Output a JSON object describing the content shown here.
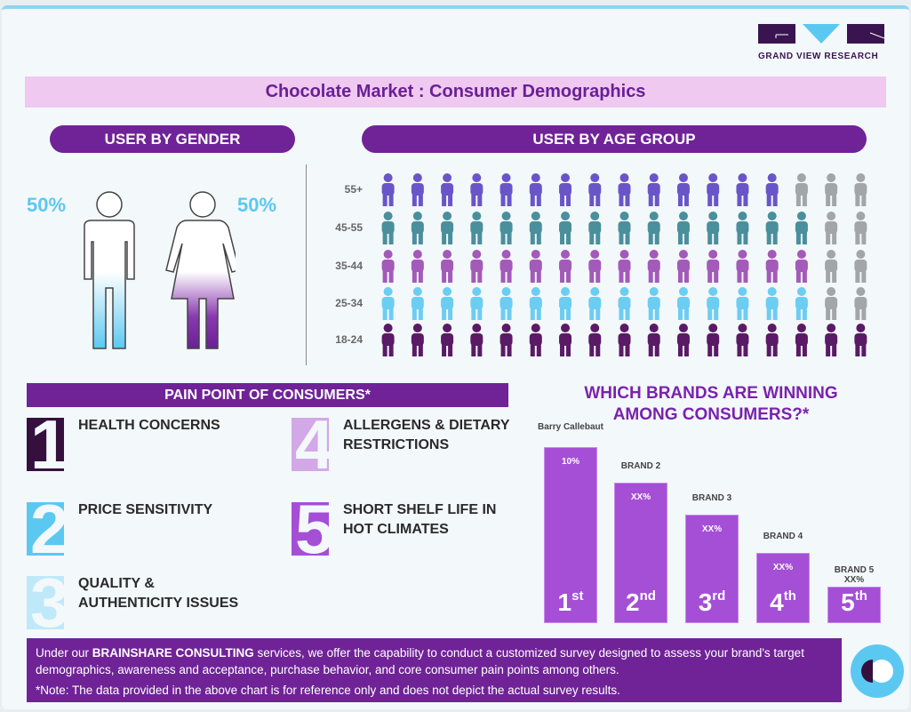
{
  "logo": {
    "text": "GRAND VIEW RESEARCH"
  },
  "title": "Chocolate Market : Consumer Demographics",
  "gender": {
    "heading": "USER BY GENDER",
    "male_pct": "50%",
    "female_pct": "50%",
    "male_share": 50,
    "female_share": 50
  },
  "age": {
    "heading": "USER BY AGE GROUP",
    "groups": [
      {
        "label": "55+",
        "fill_fraction": 0.8,
        "color": "#6a55c8",
        "icon": "elderly-person-with-cane"
      },
      {
        "label": "45-55",
        "fill_fraction": 0.9,
        "color": "#4a8f9c",
        "icon": "family-group"
      },
      {
        "label": "35-44",
        "fill_fraction": 0.9,
        "color": "#a35ab8",
        "icon": "couple-with-child"
      },
      {
        "label": "25-34",
        "fill_fraction": 0.9,
        "color": "#6ccdf2",
        "icon": "couple"
      },
      {
        "label": "18-24",
        "fill_fraction": 1.0,
        "color": "#5a1a66",
        "icon": "running-person"
      }
    ]
  },
  "pain_points": {
    "heading": "PAIN POINT OF CONSUMERS*",
    "items": [
      {
        "num": "1",
        "text": "HEALTH CONCERNS",
        "color": "#35103f"
      },
      {
        "num": "2",
        "text": "PRICE SENSITIVITY",
        "color": "#5bc8f2"
      },
      {
        "num": "3",
        "text": "QUALITY & AUTHENTICITY ISSUES",
        "color": "#bfe9f8"
      },
      {
        "num": "4",
        "text": "ALLERGENS & DIETARY RESTRICTIONS",
        "color": "#d3a8e6"
      },
      {
        "num": "5",
        "text": "SHORT SHELF LIFE IN HOT CLIMATES",
        "color": "#a44fd6"
      }
    ]
  },
  "brands": {
    "title_line1": "WHICH BRANDS ARE WINNING",
    "title_line2": "AMONG CONSUMERS?*",
    "items": [
      {
        "name": "Barry Callebaut",
        "value": "10%",
        "rank": "1",
        "suffix": "st"
      },
      {
        "name": "BRAND 2",
        "value": "XX%",
        "rank": "2",
        "suffix": "nd"
      },
      {
        "name": "BRAND 3",
        "value": "XX%",
        "rank": "3",
        "suffix": "rd"
      },
      {
        "name": "BRAND 4",
        "value": "XX%",
        "rank": "4",
        "suffix": "th"
      },
      {
        "name": "BRAND 5",
        "value": "XX%",
        "rank": "5",
        "suffix": "th"
      }
    ]
  },
  "footer": {
    "pre": "Under our ",
    "bold": "BRAINSHARE CONSULTING",
    "post": " services, we offer the capability to conduct a customized survey designed to assess your brand's target demographics, awareness and acceptance, purchase behavior, and core consumer pain points among others.",
    "note": "*Note: The data provided in the above chart is for reference only and does not depict the actual survey results."
  }
}
